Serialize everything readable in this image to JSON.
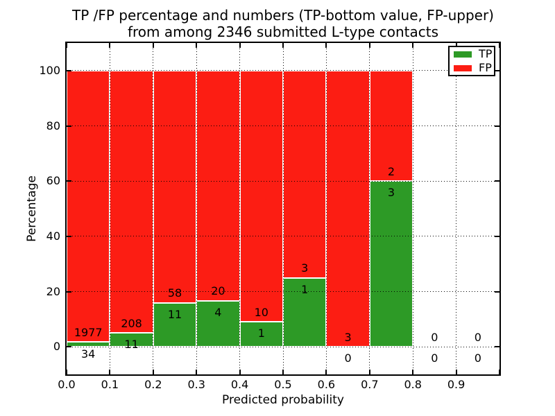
{
  "title": {
    "line1": "TP /FP percentage and numbers (TP-bottom value, FP-upper)",
    "line2": "from among 2346 submitted L-type contacts"
  },
  "chart_data": {
    "type": "bar",
    "stacked": true,
    "normalized_to_percent": true,
    "title": "TP /FP percentage and numbers (TP-bottom value, FP-upper) from among 2346 submitted L-type contacts",
    "xlabel": "Predicted probability",
    "ylabel": "Percentage",
    "xlim": [
      0.0,
      1.0
    ],
    "ylim": [
      -10,
      110
    ],
    "grid": {
      "style": "dotted",
      "color": "#000000"
    },
    "legend_position": "upper right",
    "bar_edge_color": "#ffffff",
    "x_tick_labels": [
      "0.0",
      "0.1",
      "0.2",
      "0.3",
      "0.4",
      "0.5",
      "0.6",
      "0.7",
      "0.8",
      "0.9"
    ],
    "x_tick_values": [
      0.0,
      0.1,
      0.2,
      0.3,
      0.4,
      0.5,
      0.6,
      0.7,
      0.8,
      0.9
    ],
    "x_tick_marks": [
      0.0,
      0.1,
      0.2,
      0.3,
      0.4,
      0.5,
      0.6,
      0.7,
      0.8,
      0.9,
      1.0
    ],
    "y_tick_values": [
      0,
      20,
      40,
      60,
      80,
      100
    ],
    "y_tick_labels": [
      "0",
      "20",
      "40",
      "60",
      "80",
      "100"
    ],
    "series": [
      {
        "name": "TP",
        "color": "#2d9a26"
      },
      {
        "name": "FP",
        "color": "#fc1d13"
      }
    ],
    "bins": [
      {
        "range": [
          0.0,
          0.1
        ],
        "tp": 34,
        "fp": 1977
      },
      {
        "range": [
          0.1,
          0.2
        ],
        "tp": 11,
        "fp": 208
      },
      {
        "range": [
          0.2,
          0.3
        ],
        "tp": 11,
        "fp": 58
      },
      {
        "range": [
          0.3,
          0.4
        ],
        "tp": 4,
        "fp": 20
      },
      {
        "range": [
          0.4,
          0.5
        ],
        "tp": 1,
        "fp": 10
      },
      {
        "range": [
          0.5,
          0.6
        ],
        "tp": 1,
        "fp": 3
      },
      {
        "range": [
          0.6,
          0.7
        ],
        "tp": 0,
        "fp": 3
      },
      {
        "range": [
          0.7,
          0.8
        ],
        "tp": 3,
        "fp": 2
      },
      {
        "range": [
          0.8,
          0.9
        ],
        "tp": 0,
        "fp": 0
      },
      {
        "range": [
          0.9,
          1.0
        ],
        "tp": 0,
        "fp": 0
      }
    ]
  }
}
